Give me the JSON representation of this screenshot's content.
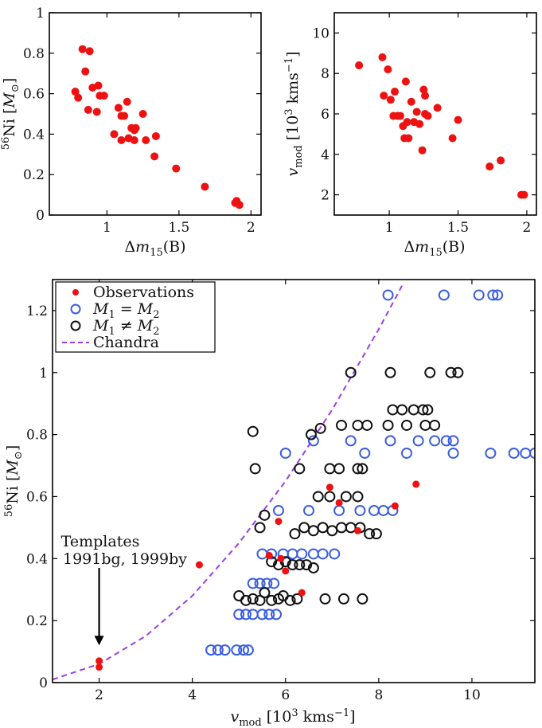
{
  "chart_data": [
    {
      "id": "ni_vs_dm15",
      "type": "scatter",
      "title": "",
      "xlabel": "Δm15(B)",
      "ylabel": "56Ni [M⊙]",
      "xlim": [
        0.6,
        2.07
      ],
      "ylim": [
        0,
        1
      ],
      "xticks": [
        1,
        1.5,
        2
      ],
      "xtick_labels": [
        "1",
        "1.5",
        "2"
      ],
      "yticks": [
        0,
        0.2,
        0.4,
        0.6,
        0.8,
        1
      ],
      "ytick_labels": [
        "0",
        "0.2",
        "0.4",
        "0.6",
        "0.8",
        "1"
      ],
      "color": "#ee1111",
      "points": [
        [
          0.78,
          0.61
        ],
        [
          0.8,
          0.58
        ],
        [
          0.83,
          0.82
        ],
        [
          0.85,
          0.71
        ],
        [
          0.87,
          0.52
        ],
        [
          0.88,
          0.81
        ],
        [
          0.9,
          0.63
        ],
        [
          0.93,
          0.51
        ],
        [
          0.94,
          0.64
        ],
        [
          0.95,
          0.59
        ],
        [
          0.98,
          0.59
        ],
        [
          1.05,
          0.4
        ],
        [
          1.08,
          0.53
        ],
        [
          1.1,
          0.49
        ],
        [
          1.1,
          0.37
        ],
        [
          1.12,
          0.49
        ],
        [
          1.14,
          0.56
        ],
        [
          1.15,
          0.38
        ],
        [
          1.17,
          0.43
        ],
        [
          1.19,
          0.42
        ],
        [
          1.19,
          0.37
        ],
        [
          1.2,
          0.43
        ],
        [
          1.25,
          0.5
        ],
        [
          1.27,
          0.37
        ],
        [
          1.33,
          0.29
        ],
        [
          1.34,
          0.39
        ],
        [
          1.48,
          0.23
        ],
        [
          1.68,
          0.14
        ],
        [
          1.89,
          0.06
        ],
        [
          1.9,
          0.07
        ],
        [
          1.92,
          0.05
        ]
      ]
    },
    {
      "id": "vmod_vs_dm15",
      "type": "scatter",
      "title": "",
      "xlabel": "Δm15(B)",
      "ylabel": "vmod [10³ kms⁻¹]",
      "xlim": [
        0.6,
        2.07
      ],
      "ylim": [
        1,
        11
      ],
      "xticks": [
        1,
        1.5,
        2
      ],
      "xtick_labels": [
        "1",
        "1.5",
        "2"
      ],
      "yticks": [
        2,
        4,
        6,
        8,
        10
      ],
      "ytick_labels": [
        "2",
        "4",
        "6",
        "8",
        "10"
      ],
      "color": "#ee1111",
      "points": [
        [
          0.78,
          8.4
        ],
        [
          0.95,
          8.8
        ],
        [
          0.96,
          6.9
        ],
        [
          0.99,
          8.2
        ],
        [
          1.01,
          6.7
        ],
        [
          1.03,
          5.9
        ],
        [
          1.04,
          7.1
        ],
        [
          1.06,
          5.9
        ],
        [
          1.08,
          5.9
        ],
        [
          1.1,
          5.4
        ],
        [
          1.11,
          4.8
        ],
        [
          1.12,
          7.6
        ],
        [
          1.13,
          5.6
        ],
        [
          1.14,
          4.8
        ],
        [
          1.16,
          6.6
        ],
        [
          1.18,
          5.6
        ],
        [
          1.2,
          6.1
        ],
        [
          1.22,
          5.5
        ],
        [
          1.24,
          4.2
        ],
        [
          1.25,
          7.2
        ],
        [
          1.26,
          6.9
        ],
        [
          1.26,
          6.0
        ],
        [
          1.28,
          5.9
        ],
        [
          1.35,
          6.3
        ],
        [
          1.46,
          4.8
        ],
        [
          1.5,
          5.7
        ],
        [
          1.73,
          3.4
        ],
        [
          1.81,
          3.7
        ],
        [
          1.96,
          2.0
        ],
        [
          1.98,
          2.0
        ]
      ]
    },
    {
      "id": "ni_vs_vmod",
      "type": "scatter",
      "title": "",
      "xlabel": "vmod [10³ kms⁻¹]",
      "ylabel": "56Ni [M⊙]",
      "xlim": [
        1,
        11.35
      ],
      "ylim": [
        0,
        1.3
      ],
      "xticks": [
        2,
        4,
        6,
        8,
        10
      ],
      "xtick_labels": [
        "2",
        "4",
        "6",
        "8",
        "10"
      ],
      "yticks": [
        0,
        0.2,
        0.4,
        0.6,
        0.8,
        1,
        1.2
      ],
      "ytick_labels": [
        "0",
        "0.2",
        "0.4",
        "0.6",
        "0.8",
        "1",
        "1.2"
      ],
      "legend_position": "top-left",
      "annotation": {
        "line1": "Templates",
        "line2": "1991bg, 1999by",
        "arrow_x": 2,
        "arrow_y_from": 0.37,
        "arrow_y_to": 0.12
      },
      "series": [
        {
          "name": "Observations",
          "marker": "filled-dot",
          "color": "#ee1111",
          "points": [
            [
              2.0,
              0.05
            ],
            [
              2.0,
              0.07
            ],
            [
              4.15,
              0.38
            ],
            [
              5.65,
              0.41
            ],
            [
              5.85,
              0.52
            ],
            [
              5.9,
              0.4
            ],
            [
              6.0,
              0.36
            ],
            [
              6.35,
              0.29
            ],
            [
              6.95,
              0.63
            ],
            [
              7.15,
              0.58
            ],
            [
              7.55,
              0.49
            ],
            [
              8.35,
              0.57
            ],
            [
              8.8,
              0.64
            ]
          ]
        },
        {
          "name": "M1 = M2",
          "marker": "open-circle",
          "color": "#3a5de0",
          "points": [
            [
              4.4,
              0.105
            ],
            [
              4.55,
              0.105
            ],
            [
              4.7,
              0.105
            ],
            [
              4.95,
              0.105
            ],
            [
              5.1,
              0.105
            ],
            [
              5.2,
              0.105
            ],
            [
              5.0,
              0.22
            ],
            [
              5.15,
              0.22
            ],
            [
              5.3,
              0.22
            ],
            [
              5.5,
              0.22
            ],
            [
              5.65,
              0.22
            ],
            [
              5.8,
              0.22
            ],
            [
              5.3,
              0.32
            ],
            [
              5.45,
              0.32
            ],
            [
              5.6,
              0.32
            ],
            [
              5.75,
              0.32
            ],
            [
              5.5,
              0.415
            ],
            [
              5.7,
              0.415
            ],
            [
              5.95,
              0.415
            ],
            [
              6.15,
              0.415
            ],
            [
              6.35,
              0.415
            ],
            [
              6.6,
              0.415
            ],
            [
              6.8,
              0.415
            ],
            [
              7.05,
              0.415
            ],
            [
              5.85,
              0.555
            ],
            [
              6.5,
              0.555
            ],
            [
              7.15,
              0.555
            ],
            [
              7.6,
              0.555
            ],
            [
              7.9,
              0.555
            ],
            [
              8.1,
              0.555
            ],
            [
              8.3,
              0.555
            ],
            [
              6.0,
              0.74
            ],
            [
              7.7,
              0.74
            ],
            [
              8.6,
              0.74
            ],
            [
              9.6,
              0.74
            ],
            [
              10.4,
              0.74
            ],
            [
              10.9,
              0.74
            ],
            [
              11.15,
              0.74
            ],
            [
              11.35,
              0.74
            ],
            [
              6.6,
              0.78
            ],
            [
              7.4,
              0.78
            ],
            [
              8.25,
              0.78
            ],
            [
              8.85,
              0.78
            ],
            [
              9.2,
              0.78
            ],
            [
              9.45,
              0.78
            ],
            [
              9.6,
              0.78
            ],
            [
              8.2,
              1.25
            ],
            [
              9.4,
              1.25
            ],
            [
              10.15,
              1.25
            ],
            [
              10.45,
              1.25
            ],
            [
              10.55,
              1.25
            ]
          ]
        },
        {
          "name": "M1 ≠ M2",
          "marker": "open-circle",
          "color": "#111111",
          "points": [
            [
              5.0,
              0.28
            ],
            [
              5.15,
              0.265
            ],
            [
              5.3,
              0.27
            ],
            [
              5.45,
              0.265
            ],
            [
              5.55,
              0.29
            ],
            [
              5.7,
              0.265
            ],
            [
              5.85,
              0.27
            ],
            [
              5.95,
              0.28
            ],
            [
              6.1,
              0.265
            ],
            [
              6.25,
              0.27
            ],
            [
              6.85,
              0.27
            ],
            [
              7.25,
              0.27
            ],
            [
              7.65,
              0.27
            ],
            [
              5.3,
              0.81
            ],
            [
              5.35,
              0.69
            ],
            [
              5.45,
              0.5
            ],
            [
              5.55,
              0.54
            ],
            [
              5.7,
              0.39
            ],
            [
              5.85,
              0.38
            ],
            [
              6.0,
              0.39
            ],
            [
              6.15,
              0.38
            ],
            [
              6.3,
              0.38
            ],
            [
              6.45,
              0.38
            ],
            [
              6.6,
              0.37
            ],
            [
              6.2,
              0.48
            ],
            [
              6.4,
              0.5
            ],
            [
              6.6,
              0.49
            ],
            [
              6.8,
              0.5
            ],
            [
              7.0,
              0.49
            ],
            [
              7.2,
              0.5
            ],
            [
              7.4,
              0.5
            ],
            [
              7.6,
              0.5
            ],
            [
              7.8,
              0.48
            ],
            [
              7.95,
              0.48
            ],
            [
              6.3,
              0.69
            ],
            [
              6.55,
              0.8
            ],
            [
              6.75,
              0.82
            ],
            [
              6.95,
              0.69
            ],
            [
              7.15,
              0.69
            ],
            [
              7.55,
              0.69
            ],
            [
              7.65,
              0.69
            ],
            [
              6.7,
              0.6
            ],
            [
              6.95,
              0.6
            ],
            [
              7.3,
              0.6
            ],
            [
              7.55,
              0.6
            ],
            [
              7.4,
              1.0
            ],
            [
              8.25,
              1.0
            ],
            [
              9.1,
              1.0
            ],
            [
              9.55,
              1.0
            ],
            [
              9.7,
              1.0
            ],
            [
              7.2,
              0.83
            ],
            [
              7.55,
              0.83
            ],
            [
              7.75,
              0.83
            ],
            [
              8.2,
              0.83
            ],
            [
              8.6,
              0.83
            ],
            [
              9.0,
              0.83
            ],
            [
              9.2,
              0.83
            ],
            [
              8.3,
              0.88
            ],
            [
              8.5,
              0.88
            ],
            [
              8.75,
              0.88
            ],
            [
              8.95,
              0.88
            ],
            [
              9.05,
              0.88
            ]
          ]
        }
      ],
      "trend": {
        "name": "Chandra",
        "style": "dashed",
        "color": "#9b3ee8",
        "x": [
          1.0,
          2.0,
          3.0,
          4.0,
          5.0,
          6.0,
          7.0,
          8.0,
          8.5
        ],
        "y": [
          0.01,
          0.06,
          0.15,
          0.28,
          0.45,
          0.65,
          0.88,
          1.14,
          1.28
        ]
      }
    }
  ]
}
